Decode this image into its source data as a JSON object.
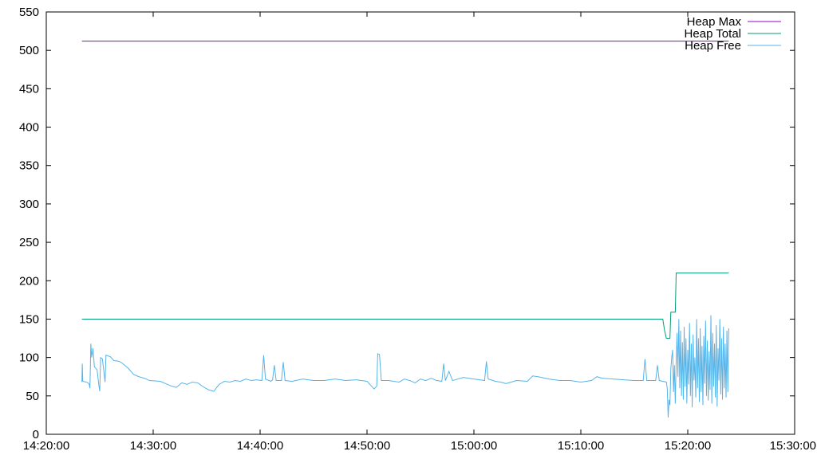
{
  "chart_data": {
    "type": "line",
    "title": "",
    "xlabel": "",
    "ylabel": "",
    "x_unit": "time (HH:MM:SS)",
    "xlim": [
      "14:20:00",
      "15:30:00"
    ],
    "ylim": [
      0,
      550
    ],
    "x_ticks": [
      "14:20:00",
      "14:30:00",
      "14:40:00",
      "14:50:00",
      "15:00:00",
      "15:10:00",
      "15:20:00",
      "15:30:00"
    ],
    "y_ticks": [
      0,
      50,
      100,
      150,
      200,
      250,
      300,
      350,
      400,
      450,
      500,
      550
    ],
    "grid": false,
    "legend_position": "top-right",
    "series": [
      {
        "name": "Heap Max",
        "color": "#9400d3",
        "points": [
          [
            "14:23:20",
            512
          ],
          [
            "15:23:50",
            512
          ]
        ]
      },
      {
        "name": "Heap Total",
        "color": "#009e73",
        "points": [
          [
            "14:23:20",
            150
          ],
          [
            "15:17:40",
            150
          ],
          [
            "15:17:50",
            135
          ],
          [
            "15:18:00",
            125
          ],
          [
            "15:18:20",
            125
          ],
          [
            "15:18:25",
            159
          ],
          [
            "15:18:50",
            159
          ],
          [
            "15:18:55",
            210
          ],
          [
            "15:23:50",
            210
          ]
        ]
      },
      {
        "name": "Heap Free",
        "color": "#56b4e9",
        "points": [
          [
            "14:23:20",
            68
          ],
          [
            "14:23:22",
            92
          ],
          [
            "14:23:25",
            69
          ],
          [
            "14:23:45",
            68
          ],
          [
            "14:24:00",
            66
          ],
          [
            "14:24:05",
            60
          ],
          [
            "14:24:10",
            118
          ],
          [
            "14:24:15",
            100
          ],
          [
            "14:24:22",
            112
          ],
          [
            "14:24:30",
            88
          ],
          [
            "14:24:45",
            84
          ],
          [
            "14:24:55",
            64
          ],
          [
            "14:25:00",
            56
          ],
          [
            "14:25:05",
            100
          ],
          [
            "14:25:15",
            98
          ],
          [
            "14:25:30",
            68
          ],
          [
            "14:25:35",
            103
          ],
          [
            "14:26:00",
            101
          ],
          [
            "14:26:20",
            96
          ],
          [
            "14:26:50",
            95
          ],
          [
            "14:27:10",
            92
          ],
          [
            "14:27:40",
            86
          ],
          [
            "14:28:10",
            78
          ],
          [
            "14:28:40",
            75
          ],
          [
            "14:29:10",
            73
          ],
          [
            "14:29:40",
            70
          ],
          [
            "14:30:40",
            69
          ],
          [
            "14:31:10",
            66
          ],
          [
            "14:31:40",
            63
          ],
          [
            "14:32:10",
            61
          ],
          [
            "14:32:40",
            67
          ],
          [
            "14:33:10",
            65
          ],
          [
            "14:33:40",
            68
          ],
          [
            "14:34:10",
            67
          ],
          [
            "14:34:40",
            62
          ],
          [
            "14:35:10",
            58
          ],
          [
            "14:35:40",
            56
          ],
          [
            "14:36:10",
            65
          ],
          [
            "14:36:40",
            69
          ],
          [
            "14:37:10",
            68
          ],
          [
            "14:37:40",
            70
          ],
          [
            "14:38:10",
            69
          ],
          [
            "14:38:40",
            72
          ],
          [
            "14:39:10",
            70
          ],
          [
            "14:39:40",
            71
          ],
          [
            "14:40:10",
            70
          ],
          [
            "14:40:20",
            103
          ],
          [
            "14:40:30",
            72
          ],
          [
            "14:41:00",
            69
          ],
          [
            "14:41:10",
            71
          ],
          [
            "14:41:20",
            90
          ],
          [
            "14:41:30",
            70
          ],
          [
            "14:42:00",
            70
          ],
          [
            "14:42:10",
            94
          ],
          [
            "14:42:20",
            70
          ],
          [
            "14:43:00",
            69
          ],
          [
            "14:44:00",
            72
          ],
          [
            "14:45:00",
            70
          ],
          [
            "14:46:00",
            70
          ],
          [
            "14:47:00",
            72
          ],
          [
            "14:48:00",
            70
          ],
          [
            "14:49:00",
            71
          ],
          [
            "14:50:00",
            69
          ],
          [
            "14:50:20",
            64
          ],
          [
            "14:50:40",
            59
          ],
          [
            "14:50:55",
            63
          ],
          [
            "14:51:00",
            105
          ],
          [
            "14:51:10",
            104
          ],
          [
            "14:51:20",
            70
          ],
          [
            "14:52:00",
            70
          ],
          [
            "14:53:00",
            68
          ],
          [
            "14:53:30",
            72
          ],
          [
            "14:54:00",
            70
          ],
          [
            "14:54:30",
            67
          ],
          [
            "14:55:00",
            72
          ],
          [
            "14:55:30",
            70
          ],
          [
            "14:56:00",
            73
          ],
          [
            "14:56:30",
            70
          ],
          [
            "14:57:00",
            69
          ],
          [
            "14:57:10",
            92
          ],
          [
            "14:57:20",
            70
          ],
          [
            "14:57:40",
            82
          ],
          [
            "14:58:00",
            70
          ],
          [
            "14:59:00",
            74
          ],
          [
            "15:00:00",
            72
          ],
          [
            "15:01:00",
            70
          ],
          [
            "15:01:10",
            95
          ],
          [
            "15:01:20",
            72
          ],
          [
            "15:02:00",
            69
          ],
          [
            "15:02:30",
            68
          ],
          [
            "15:03:00",
            66
          ],
          [
            "15:04:00",
            70
          ],
          [
            "15:05:00",
            69
          ],
          [
            "15:05:30",
            76
          ],
          [
            "15:06:00",
            75
          ],
          [
            "15:07:00",
            72
          ],
          [
            "15:08:00",
            70
          ],
          [
            "15:09:00",
            70
          ],
          [
            "15:10:00",
            68
          ],
          [
            "15:11:00",
            70
          ],
          [
            "15:11:30",
            75
          ],
          [
            "15:12:00",
            73
          ],
          [
            "15:13:00",
            72
          ],
          [
            "15:14:00",
            71
          ],
          [
            "15:15:00",
            70
          ],
          [
            "15:15:50",
            70
          ],
          [
            "15:16:00",
            98
          ],
          [
            "15:16:10",
            70
          ],
          [
            "15:17:00",
            70
          ],
          [
            "15:17:10",
            90
          ],
          [
            "15:17:20",
            70
          ],
          [
            "15:18:00",
            68
          ],
          [
            "15:18:05",
            60
          ],
          [
            "15:18:10",
            22
          ],
          [
            "15:18:15",
            45
          ],
          [
            "15:18:20",
            38
          ],
          [
            "15:18:25",
            85
          ],
          [
            "15:18:30",
            100
          ],
          [
            "15:18:35",
            110
          ],
          [
            "15:18:40",
            55
          ],
          [
            "15:18:45",
            90
          ],
          [
            "15:18:50",
            40
          ],
          [
            "15:18:55",
            95
          ],
          [
            "15:19:00",
            132
          ],
          [
            "15:19:05",
            75
          ],
          [
            "15:19:10",
            150
          ],
          [
            "15:19:15",
            60
          ],
          [
            "15:19:20",
            135
          ],
          [
            "15:19:25",
            50
          ],
          [
            "15:19:30",
            120
          ],
          [
            "15:19:35",
            45
          ],
          [
            "15:19:40",
            140
          ],
          [
            "15:19:45",
            62
          ],
          [
            "15:19:50",
            125
          ],
          [
            "15:19:55",
            40
          ],
          [
            "15:20:00",
            110
          ],
          [
            "15:20:05",
            65
          ],
          [
            "15:20:10",
            145
          ],
          [
            "15:20:15",
            50
          ],
          [
            "15:20:20",
            118
          ],
          [
            "15:20:25",
            35
          ],
          [
            "15:20:30",
            130
          ],
          [
            "15:20:35",
            70
          ],
          [
            "15:20:40",
            100
          ],
          [
            "15:20:45",
            48
          ],
          [
            "15:20:50",
            150
          ],
          [
            "15:20:55",
            60
          ],
          [
            "15:21:00",
            125
          ],
          [
            "15:21:05",
            42
          ],
          [
            "15:21:10",
            138
          ],
          [
            "15:21:15",
            55
          ],
          [
            "15:21:20",
            115
          ],
          [
            "15:21:25",
            38
          ],
          [
            "15:21:30",
            128
          ],
          [
            "15:21:35",
            66
          ],
          [
            "15:21:40",
            148
          ],
          [
            "15:21:45",
            50
          ],
          [
            "15:21:50",
            122
          ],
          [
            "15:21:55",
            44
          ],
          [
            "15:22:00",
            108
          ],
          [
            "15:22:05",
            58
          ],
          [
            "15:22:10",
            155
          ],
          [
            "15:22:15",
            40
          ],
          [
            "15:22:20",
            132
          ],
          [
            "15:22:25",
            62
          ],
          [
            "15:22:30",
            118
          ],
          [
            "15:22:35",
            48
          ],
          [
            "15:22:40",
            142
          ],
          [
            "15:22:45",
            36
          ],
          [
            "15:22:50",
            112
          ],
          [
            "15:22:55",
            70
          ],
          [
            "15:23:00",
            150
          ],
          [
            "15:23:05",
            52
          ],
          [
            "15:23:10",
            125
          ],
          [
            "15:23:15",
            45
          ],
          [
            "15:23:20",
            140
          ],
          [
            "15:23:25",
            60
          ],
          [
            "15:23:30",
            118
          ],
          [
            "15:23:35",
            48
          ],
          [
            "15:23:40",
            135
          ],
          [
            "15:23:45",
            55
          ],
          [
            "15:23:50",
            138
          ]
        ]
      }
    ]
  }
}
